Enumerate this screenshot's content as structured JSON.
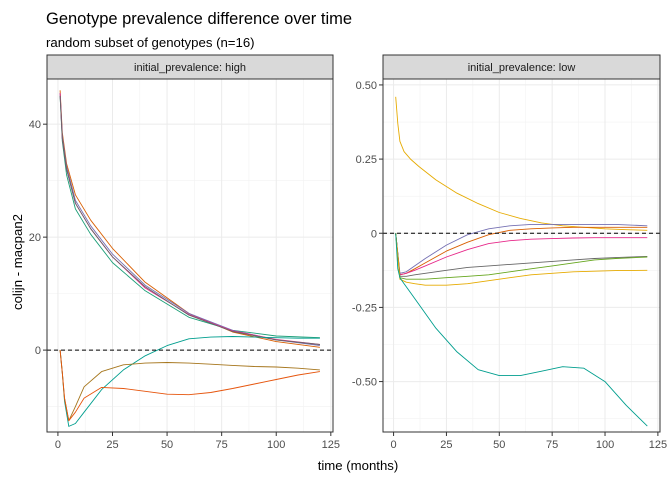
{
  "chart_data": {
    "type": "line",
    "title": "Genotype prevalence difference over time",
    "subtitle": "random subset of genotypes (n=16)",
    "xlabel": "time (months)",
    "ylabel": "colijn - macpan2",
    "xlim": [
      -5,
      126
    ],
    "grid": true,
    "reference_line": {
      "y": 0,
      "style": "dashed"
    },
    "panels": [
      {
        "strip": "initial_prevalence: high",
        "ylim": [
          -14.5,
          48
        ],
        "yticks": [
          0,
          20,
          40
        ],
        "xticks": [
          0,
          25,
          50,
          75,
          100,
          125
        ],
        "series": [
          {
            "color": "#1B9E77",
            "x": [
              1,
              2,
              4,
              8,
              15,
              25,
              40,
              60,
              80,
              100,
              120
            ],
            "y": [
              45,
              37,
              31,
              25,
              20.5,
              15.5,
              10.5,
              5.8,
              3.5,
              2.5,
              2.2
            ]
          },
          {
            "color": "#D95F02",
            "x": [
              1,
              2,
              4,
              8,
              15,
              25,
              40,
              60,
              80,
              100,
              120
            ],
            "y": [
              46,
              38.5,
              33,
              27.5,
              23,
              18,
              12,
              6.5,
              3.2,
              1.5,
              0.5
            ]
          },
          {
            "color": "#7570B3",
            "x": [
              1,
              2,
              4,
              8,
              15,
              25,
              40,
              60,
              80,
              100,
              120
            ],
            "y": [
              45.5,
              38,
              32.5,
              26.5,
              22,
              17,
              11.5,
              6.5,
              3.5,
              1.8,
              0.8
            ]
          },
          {
            "color": "#E7298A",
            "x": [
              1,
              2,
              4,
              8,
              15,
              25,
              40,
              60,
              80,
              100,
              120
            ],
            "y": [
              45.5,
              37.5,
              32,
              26,
              21.5,
              16.5,
              11,
              6.3,
              3.4,
              1.9,
              1
            ]
          },
          {
            "color": "#666666",
            "x": [
              1,
              2,
              4,
              8,
              15,
              25,
              40,
              60,
              80,
              100,
              120
            ],
            "y": [
              45,
              37.5,
              32,
              26,
              21.5,
              16.5,
              11.2,
              6.2,
              3.3,
              1.8,
              1
            ]
          },
          {
            "color": "#009E8E",
            "x": [
              1,
              2,
              3,
              5,
              8,
              12,
              20,
              30,
              40,
              50,
              60,
              70,
              80,
              90,
              100,
              110,
              120
            ],
            "y": [
              0,
              -4,
              -9,
              -13.5,
              -13,
              -11,
              -7,
              -3.5,
              -1,
              0.8,
              2,
              2.3,
              2.4,
              2.3,
              2.2,
              2.1,
              2.1
            ]
          },
          {
            "color": "#A6761D",
            "x": [
              1,
              2,
              3,
              5,
              8,
              12,
              20,
              30,
              40,
              50,
              60,
              70,
              80,
              90,
              100,
              110,
              120
            ],
            "y": [
              0,
              -4,
              -8.5,
              -12.5,
              -10,
              -6.5,
              -3.8,
              -2.6,
              -2.3,
              -2.2,
              -2.3,
              -2.5,
              -2.7,
              -2.9,
              -3,
              -3.2,
              -3.5
            ]
          },
          {
            "color": "#E6550D",
            "x": [
              1,
              2,
              3,
              5,
              8,
              12,
              20,
              30,
              40,
              50,
              60,
              70,
              80,
              90,
              100,
              110,
              120
            ],
            "y": [
              0,
              -4,
              -8.5,
              -12.5,
              -11,
              -8.5,
              -6.6,
              -6.8,
              -7.3,
              -7.8,
              -7.9,
              -7.5,
              -6.8,
              -6,
              -5.2,
              -4.4,
              -3.8
            ]
          }
        ]
      },
      {
        "strip": "initial_prevalence: low",
        "ylim": [
          -0.67,
          0.52
        ],
        "yticks": [
          -0.5,
          -0.25,
          0,
          0.25,
          0.5
        ],
        "xticks": [
          0,
          25,
          50,
          75,
          100,
          125
        ],
        "series": [
          {
            "color": "#E6AB02",
            "x": [
              1,
              2,
              3,
              5,
              8,
              12,
              20,
              30,
              40,
              50,
              60,
              70,
              80,
              90,
              100,
              110,
              120
            ],
            "y": [
              0.46,
              0.37,
              0.31,
              0.275,
              0.25,
              0.225,
              0.18,
              0.135,
              0.1,
              0.07,
              0.05,
              0.035,
              0.025,
              0.02,
              0.015,
              0.012,
              0.01
            ]
          },
          {
            "color": "#7570B3",
            "x": [
              1,
              3,
              6,
              10,
              15,
              25,
              35,
              45,
              55,
              65,
              75,
              85,
              95,
              105,
              120
            ],
            "y": [
              0,
              -0.135,
              -0.13,
              -0.11,
              -0.085,
              -0.04,
              -0.005,
              0.015,
              0.025,
              0.03,
              0.03,
              0.03,
              0.03,
              0.03,
              0.025
            ]
          },
          {
            "color": "#D95F02",
            "x": [
              1,
              3,
              6,
              10,
              15,
              25,
              35,
              45,
              55,
              65,
              75,
              85,
              95,
              105,
              120
            ],
            "y": [
              0,
              -0.14,
              -0.135,
              -0.12,
              -0.1,
              -0.06,
              -0.03,
              -0.005,
              0.01,
              0.015,
              0.018,
              0.02,
              0.02,
              0.02,
              0.02
            ]
          },
          {
            "color": "#E7298A",
            "x": [
              1,
              3,
              6,
              10,
              15,
              25,
              35,
              45,
              55,
              65,
              75,
              85,
              95,
              105,
              120
            ],
            "y": [
              0,
              -0.14,
              -0.135,
              -0.125,
              -0.11,
              -0.08,
              -0.055,
              -0.035,
              -0.025,
              -0.02,
              -0.018,
              -0.016,
              -0.015,
              -0.015,
              -0.015
            ]
          },
          {
            "color": "#666666",
            "x": [
              1,
              3,
              6,
              10,
              15,
              25,
              35,
              45,
              55,
              65,
              75,
              85,
              95,
              105,
              120
            ],
            "y": [
              0,
              -0.145,
              -0.145,
              -0.14,
              -0.135,
              -0.125,
              -0.115,
              -0.11,
              -0.105,
              -0.1,
              -0.095,
              -0.09,
              -0.085,
              -0.082,
              -0.078
            ]
          },
          {
            "color": "#66A61E",
            "x": [
              1,
              3,
              6,
              10,
              15,
              25,
              35,
              45,
              55,
              65,
              75,
              85,
              95,
              105,
              120
            ],
            "y": [
              0,
              -0.15,
              -0.155,
              -0.155,
              -0.155,
              -0.15,
              -0.145,
              -0.14,
              -0.13,
              -0.12,
              -0.11,
              -0.1,
              -0.09,
              -0.085,
              -0.08
            ]
          },
          {
            "color": "#E6AB02",
            "x": [
              1,
              3,
              6,
              10,
              15,
              25,
              35,
              45,
              55,
              65,
              75,
              85,
              95,
              105,
              120
            ],
            "y": [
              0,
              -0.155,
              -0.165,
              -0.17,
              -0.175,
              -0.175,
              -0.17,
              -0.16,
              -0.15,
              -0.14,
              -0.135,
              -0.13,
              -0.128,
              -0.126,
              -0.125
            ]
          },
          {
            "color": "#009E8E",
            "x": [
              1,
              2,
              3,
              5,
              8,
              12,
              20,
              30,
              40,
              50,
              60,
              70,
              80,
              90,
              100,
              110,
              120
            ],
            "y": [
              0,
              -0.12,
              -0.15,
              -0.17,
              -0.2,
              -0.24,
              -0.32,
              -0.4,
              -0.46,
              -0.48,
              -0.48,
              -0.465,
              -0.45,
              -0.455,
              -0.5,
              -0.58,
              -0.65
            ]
          }
        ]
      }
    ]
  }
}
